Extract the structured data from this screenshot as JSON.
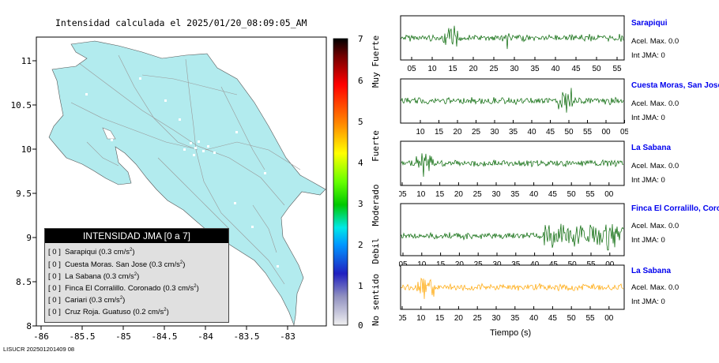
{
  "map": {
    "title": "Intensidad calculada el 2025/01/20_08:09:05_AM",
    "y_ticks": [
      "11",
      "10.5",
      "10",
      "9.5",
      "9",
      "8.5",
      "8"
    ],
    "x_ticks": [
      "-86",
      "-85.5",
      "-85",
      "-84.5",
      "-84",
      "-83.5",
      "-83"
    ],
    "land_color": "#b2ebee"
  },
  "legend": {
    "title": "INTENSIDAD JMA [0 a 7]",
    "rows": [
      {
        "level": "[ 0 ]",
        "name": "Sarapiqui",
        "value": "(0.3 cm/s",
        "exp": "2",
        "close": ")"
      },
      {
        "level": "[ 0 ]",
        "name": "Cuesta Moras. San Jose",
        "value": "(0.3 cm/s",
        "exp": "2",
        "close": ")"
      },
      {
        "level": "[ 0 ]",
        "name": "La Sabana",
        "value": "(0.3 cm/s",
        "exp": "2",
        "close": ")"
      },
      {
        "level": "[ 0 ]",
        "name": "Finca El Corralillo. Coronado",
        "value": "(0.3 cm/s",
        "exp": "2",
        "close": ")"
      },
      {
        "level": "[ 0 ]",
        "name": "Cariari",
        "value": "(0.3 cm/s",
        "exp": "2",
        "close": ")"
      },
      {
        "level": "[ 0 ]",
        "name": "Cruz Roja. Guatuso",
        "value": "(0.2 cm/s",
        "exp": "2",
        "close": ")"
      }
    ]
  },
  "colorbar": {
    "ticks": [
      "7",
      "6",
      "5",
      "4",
      "3",
      "2",
      "1",
      "0"
    ],
    "labels": [
      "Muy Fuerte",
      "Fuerte",
      "Moderado",
      "Debil",
      "No sentido"
    ]
  },
  "stations": [
    {
      "name": "Sarapiqui",
      "accel": "Acel. Max. 0.0",
      "intensity": "Int JMA: 0",
      "color": "#006400",
      "ticks": [
        "05",
        "10",
        "15",
        "20",
        "25",
        "30",
        "35",
        "40",
        "45",
        "50",
        "55"
      ]
    },
    {
      "name": "Cuesta Moras, San Jose",
      "accel": "Acel. Max. 0.0",
      "intensity": "Int JMA: 0",
      "color": "#006400",
      "ticks": [
        "10",
        "15",
        "20",
        "25",
        "30",
        "35",
        "40",
        "45",
        "50",
        "55",
        "00",
        "05"
      ]
    },
    {
      "name": "La Sabana",
      "accel": "Acel. Max. 0.0",
      "intensity": "Int JMA: 0",
      "color": "#006400",
      "ticks": [
        "05",
        "10",
        "15",
        "20",
        "25",
        "30",
        "35",
        "40",
        "45",
        "50",
        "55",
        "00"
      ]
    },
    {
      "name": "Finca El Corralillo, Coronado",
      "accel": "Acel. Max. 0.0",
      "intensity": "Int JMA: 0",
      "color": "#006400",
      "ticks": [
        "05",
        "10",
        "15",
        "20",
        "25",
        "30",
        "35",
        "40",
        "45",
        "50",
        "55",
        "00"
      ]
    },
    {
      "name": "La Sabana",
      "accel": "Acel. Max. 0.0",
      "intensity": "Int JMA: 0",
      "color": "#ffa500",
      "ticks": [
        "05",
        "10",
        "15",
        "20",
        "25",
        "30",
        "35",
        "40",
        "45",
        "50",
        "55",
        "00"
      ]
    }
  ],
  "axis": {
    "xlabel": "Tiempo (s)"
  },
  "footer": "LISUCR 202501201409 08"
}
